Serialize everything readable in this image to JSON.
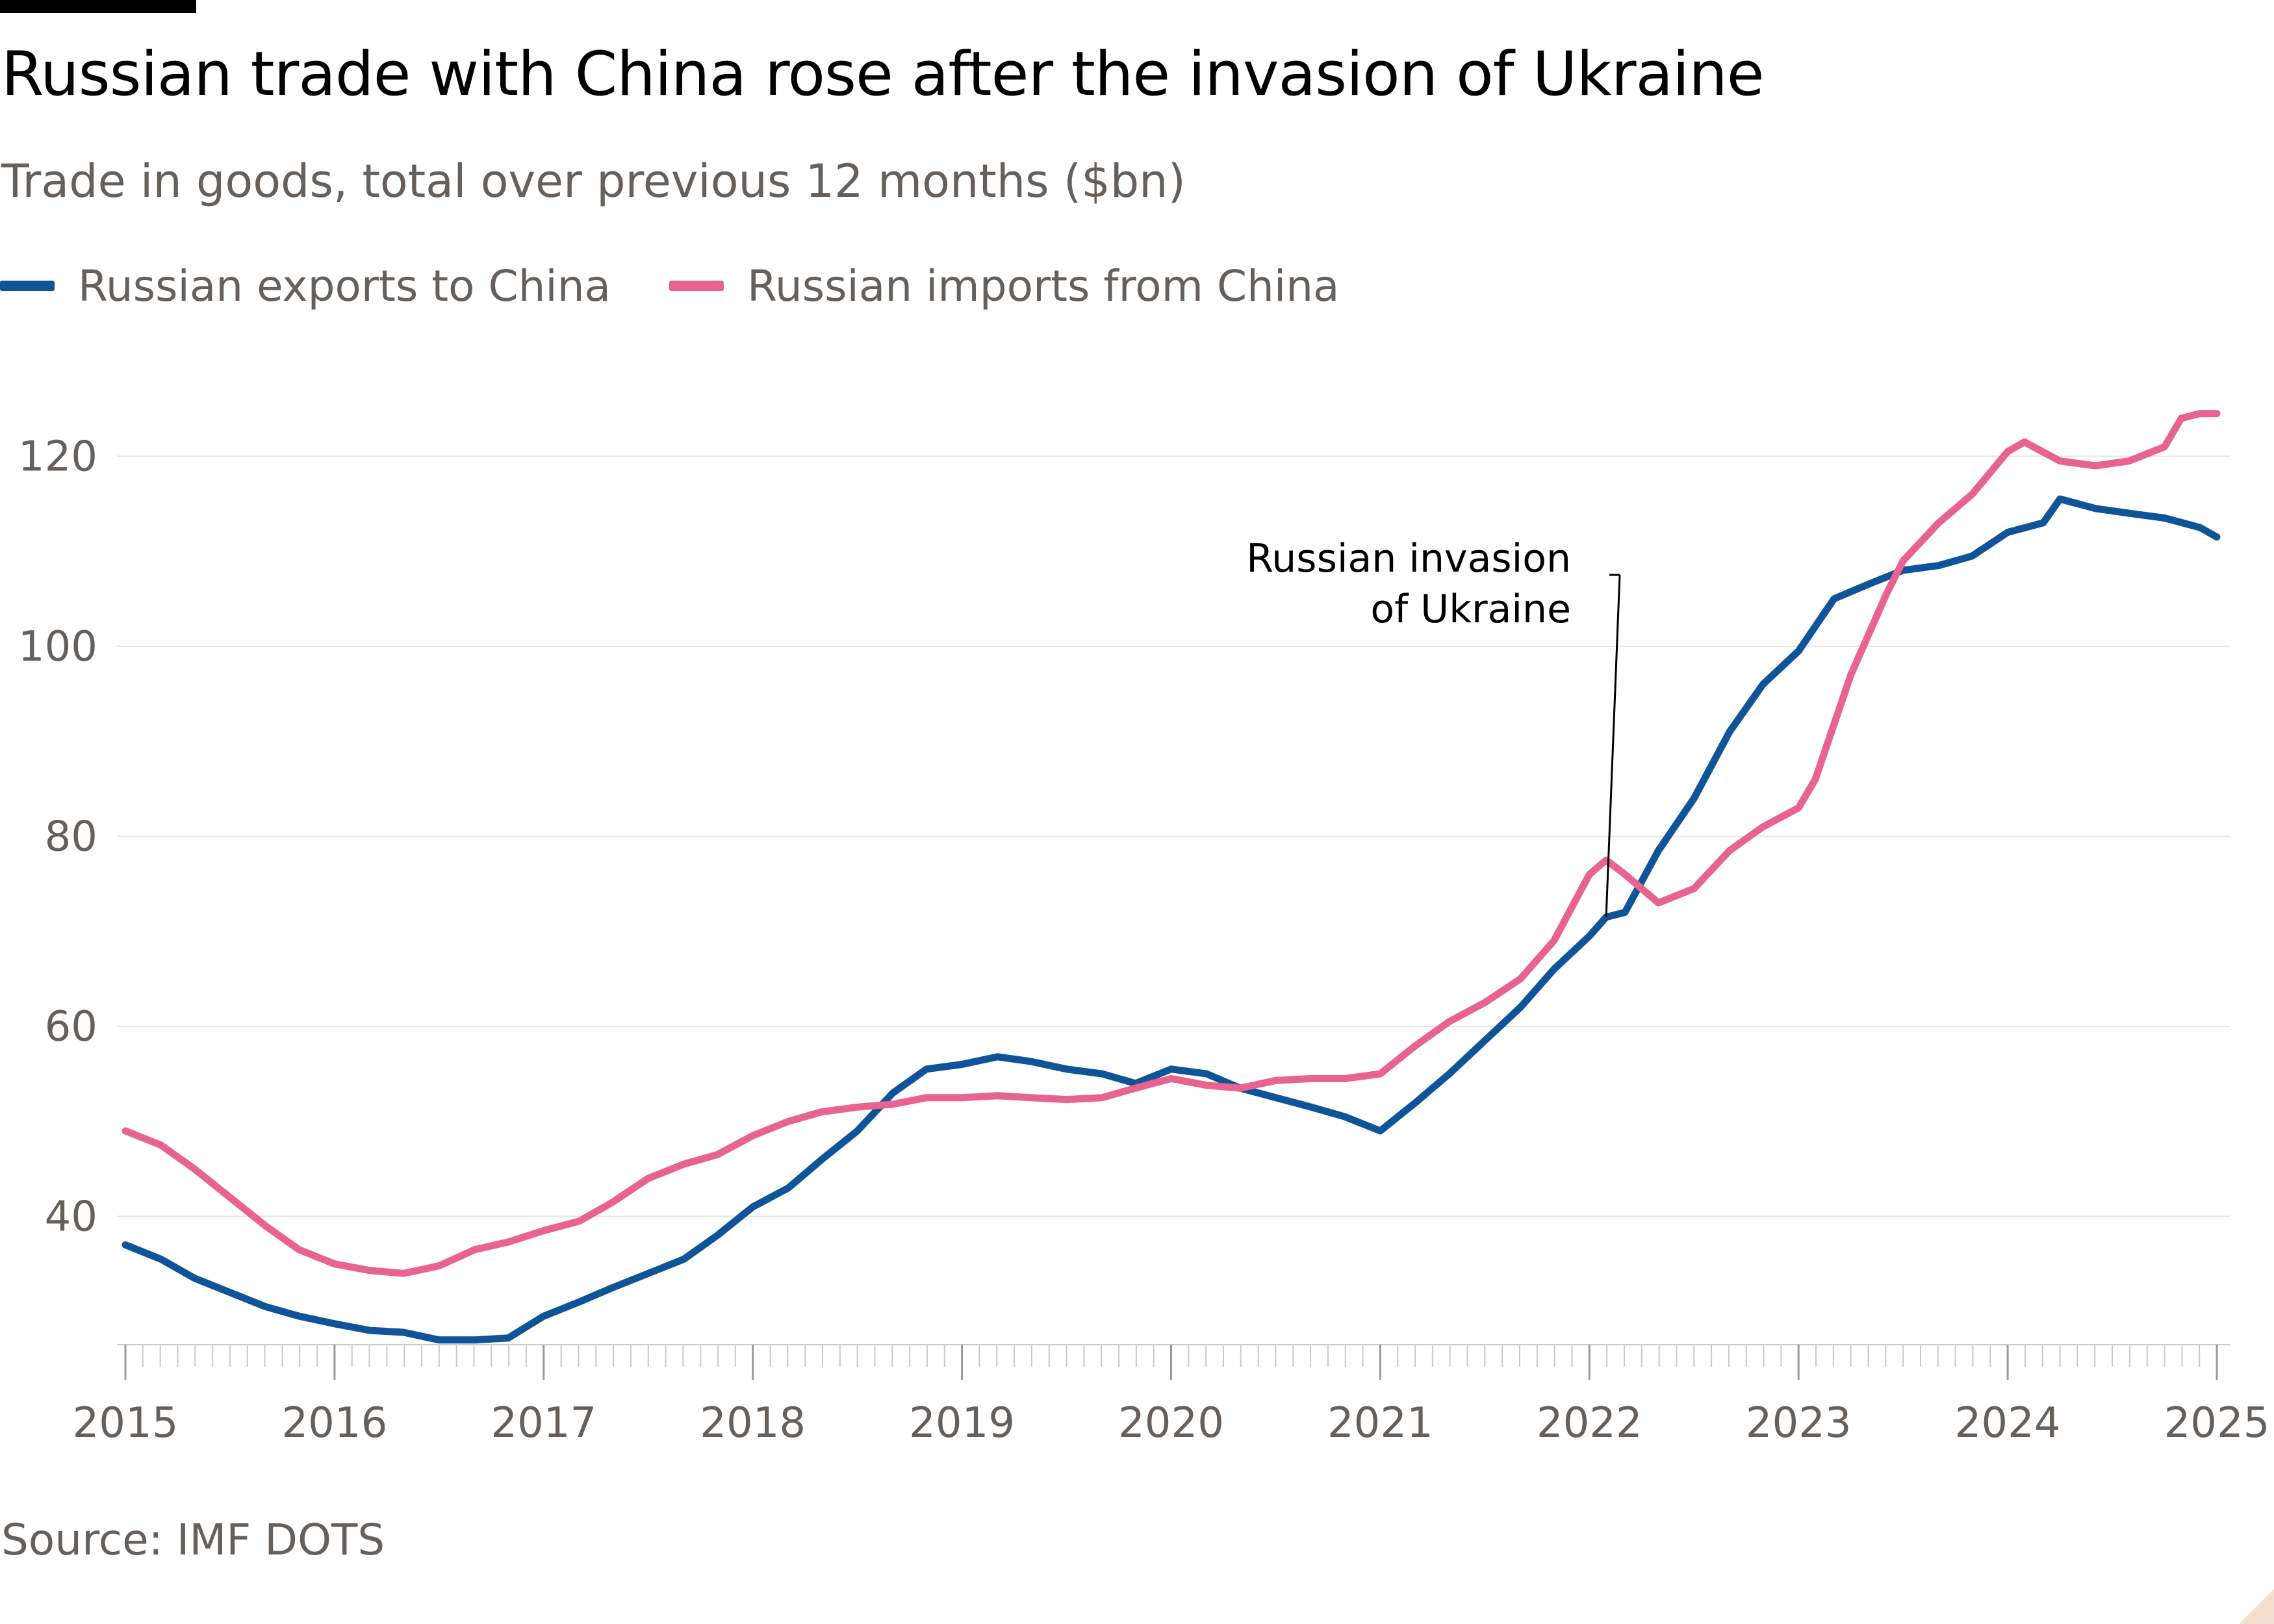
{
  "header": {
    "title": "Russian trade with China rose after the invasion of Ukraine",
    "subtitle": "Trade in goods, total over previous 12 months ($bn)"
  },
  "legend": {
    "exports_label": "Russian exports to China",
    "imports_label": "Russian imports from China"
  },
  "footer": {
    "source": "Source: IMF DOTS"
  },
  "colors": {
    "exports": "#0f5499",
    "imports": "#e8638f",
    "grid": "#e6e6e6",
    "text": "#66605c"
  },
  "chart_data": {
    "type": "line",
    "title": "Russian trade with China rose after the invasion of Ukraine",
    "subtitle": "Trade in goods, total over previous 12 months ($bn)",
    "xlabel": "",
    "ylabel": "",
    "xlim": [
      2015,
      2025
    ],
    "ylim": [
      26.5,
      127
    ],
    "grid": true,
    "legend_position": "top-left",
    "x_ticks": [
      "2015",
      "2016",
      "2017",
      "2018",
      "2019",
      "2020",
      "2021",
      "2022",
      "2023",
      "2024",
      "2025"
    ],
    "y_ticks": [
      "40",
      "60",
      "80",
      "100",
      "120"
    ],
    "annotation": {
      "text": [
        "Russian invasion",
        "of Ukraine"
      ],
      "x": 2022.08,
      "y": 71.5
    },
    "series": [
      {
        "name": "Russian exports to China",
        "color": "#0f5499",
        "points": [
          [
            2015.0,
            37.0
          ],
          [
            2015.17,
            35.5
          ],
          [
            2015.33,
            33.5
          ],
          [
            2015.5,
            32.0
          ],
          [
            2015.67,
            30.5
          ],
          [
            2015.83,
            29.5
          ],
          [
            2016.0,
            28.7
          ],
          [
            2016.17,
            28.0
          ],
          [
            2016.33,
            27.8
          ],
          [
            2016.5,
            27.0
          ],
          [
            2016.67,
            27.0
          ],
          [
            2016.83,
            27.2
          ],
          [
            2017.0,
            29.5
          ],
          [
            2017.17,
            31.0
          ],
          [
            2017.33,
            32.5
          ],
          [
            2017.5,
            34.0
          ],
          [
            2017.67,
            35.5
          ],
          [
            2017.83,
            38.0
          ],
          [
            2018.0,
            41.0
          ],
          [
            2018.17,
            43.0
          ],
          [
            2018.33,
            46.0
          ],
          [
            2018.5,
            49.0
          ],
          [
            2018.67,
            53.0
          ],
          [
            2018.83,
            55.5
          ],
          [
            2019.0,
            56.0
          ],
          [
            2019.17,
            56.8
          ],
          [
            2019.33,
            56.3
          ],
          [
            2019.5,
            55.5
          ],
          [
            2019.67,
            55.0
          ],
          [
            2019.83,
            54.0
          ],
          [
            2020.0,
            55.5
          ],
          [
            2020.17,
            55.0
          ],
          [
            2020.33,
            53.5
          ],
          [
            2020.5,
            52.5
          ],
          [
            2020.67,
            51.5
          ],
          [
            2020.83,
            50.5
          ],
          [
            2021.0,
            49.0
          ],
          [
            2021.17,
            52.0
          ],
          [
            2021.33,
            55.0
          ],
          [
            2021.5,
            58.5
          ],
          [
            2021.67,
            62.0
          ],
          [
            2021.83,
            66.0
          ],
          [
            2022.0,
            69.5
          ],
          [
            2022.08,
            71.5
          ],
          [
            2022.17,
            72.0
          ],
          [
            2022.33,
            78.5
          ],
          [
            2022.5,
            84.0
          ],
          [
            2022.67,
            91.0
          ],
          [
            2022.83,
            96.0
          ],
          [
            2023.0,
            99.5
          ],
          [
            2023.17,
            105.0
          ],
          [
            2023.33,
            106.5
          ],
          [
            2023.5,
            108.0
          ],
          [
            2023.67,
            108.5
          ],
          [
            2023.83,
            109.5
          ],
          [
            2024.0,
            112.0
          ],
          [
            2024.17,
            113.0
          ],
          [
            2024.25,
            115.5
          ],
          [
            2024.42,
            114.5
          ],
          [
            2024.58,
            114.0
          ],
          [
            2024.75,
            113.5
          ],
          [
            2024.92,
            112.5
          ],
          [
            2025.0,
            111.5
          ]
        ]
      },
      {
        "name": "Russian imports from China",
        "color": "#e8638f",
        "points": [
          [
            2015.0,
            49.0
          ],
          [
            2015.17,
            47.5
          ],
          [
            2015.33,
            45.0
          ],
          [
            2015.5,
            42.0
          ],
          [
            2015.67,
            39.0
          ],
          [
            2015.83,
            36.5
          ],
          [
            2016.0,
            35.0
          ],
          [
            2016.17,
            34.3
          ],
          [
            2016.33,
            34.0
          ],
          [
            2016.5,
            34.8
          ],
          [
            2016.67,
            36.5
          ],
          [
            2016.83,
            37.3
          ],
          [
            2017.0,
            38.5
          ],
          [
            2017.17,
            39.5
          ],
          [
            2017.33,
            41.5
          ],
          [
            2017.5,
            44.0
          ],
          [
            2017.67,
            45.5
          ],
          [
            2017.83,
            46.5
          ],
          [
            2018.0,
            48.5
          ],
          [
            2018.17,
            50.0
          ],
          [
            2018.33,
            51.0
          ],
          [
            2018.5,
            51.5
          ],
          [
            2018.67,
            51.8
          ],
          [
            2018.83,
            52.5
          ],
          [
            2019.0,
            52.5
          ],
          [
            2019.17,
            52.7
          ],
          [
            2019.33,
            52.5
          ],
          [
            2019.5,
            52.3
          ],
          [
            2019.67,
            52.5
          ],
          [
            2019.83,
            53.5
          ],
          [
            2020.0,
            54.5
          ],
          [
            2020.17,
            53.8
          ],
          [
            2020.33,
            53.5
          ],
          [
            2020.5,
            54.3
          ],
          [
            2020.67,
            54.5
          ],
          [
            2020.83,
            54.5
          ],
          [
            2021.0,
            55.0
          ],
          [
            2021.17,
            58.0
          ],
          [
            2021.33,
            60.5
          ],
          [
            2021.5,
            62.5
          ],
          [
            2021.67,
            65.0
          ],
          [
            2021.83,
            69.0
          ],
          [
            2022.0,
            76.0
          ],
          [
            2022.08,
            77.5
          ],
          [
            2022.17,
            76.0
          ],
          [
            2022.33,
            73.0
          ],
          [
            2022.5,
            74.5
          ],
          [
            2022.67,
            78.5
          ],
          [
            2022.83,
            81.0
          ],
          [
            2023.0,
            83.0
          ],
          [
            2023.08,
            86.0
          ],
          [
            2023.25,
            97.0
          ],
          [
            2023.42,
            105.5
          ],
          [
            2023.5,
            109.0
          ],
          [
            2023.67,
            113.0
          ],
          [
            2023.83,
            116.0
          ],
          [
            2024.0,
            120.5
          ],
          [
            2024.08,
            121.5
          ],
          [
            2024.25,
            119.5
          ],
          [
            2024.42,
            119.0
          ],
          [
            2024.58,
            119.5
          ],
          [
            2024.75,
            121.0
          ],
          [
            2024.83,
            124.0
          ],
          [
            2024.92,
            124.5
          ],
          [
            2025.0,
            124.5
          ]
        ]
      }
    ]
  }
}
